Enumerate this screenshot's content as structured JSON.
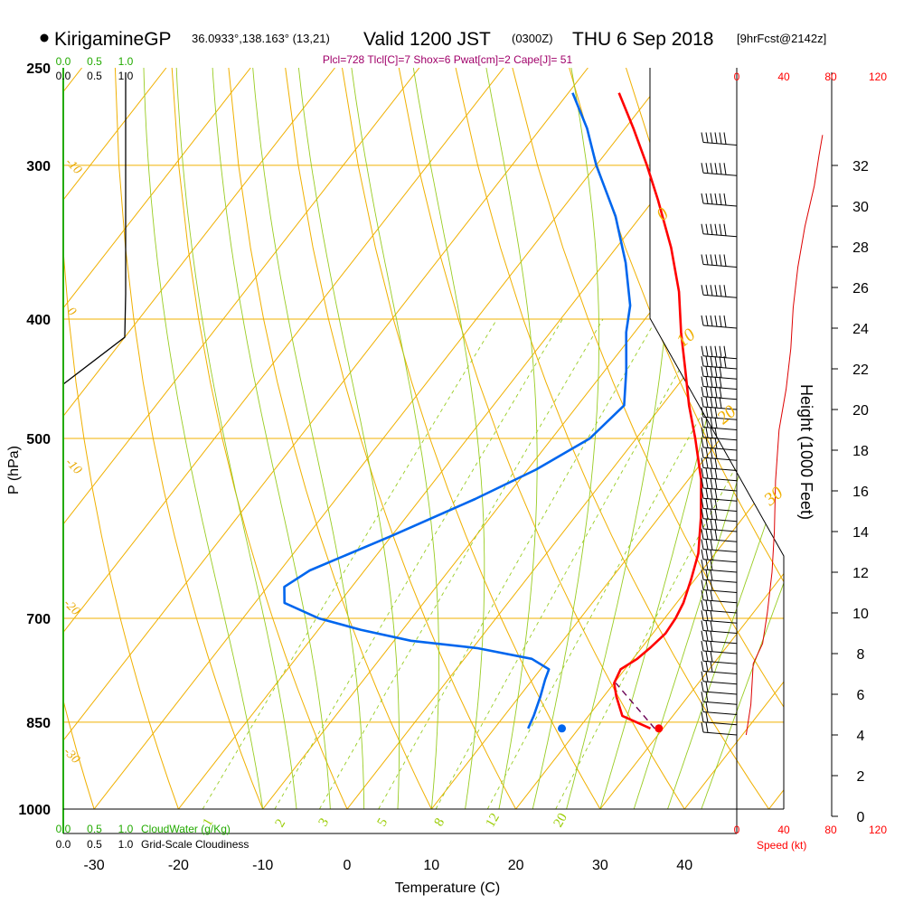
{
  "header": {
    "station": "KirigamineGP",
    "coords": "36.0933°,138.163° (13,21)",
    "valid": "Valid 1200 JST",
    "utc": "(0300Z)",
    "date": "THU 6 Sep 2018",
    "forecast": "[9hrFcst@2142z]",
    "indices": "Plcl=728 Tlcl[C]=7 Shox=6 Pwat[cm]=2 Cape[J]= 51"
  },
  "axes": {
    "x_title": "Temperature (C)",
    "y_title": "P (hPa)",
    "height_title": "Height (1000 Feet)",
    "speed_title": "Speed (kt)",
    "x_ticks": [
      "-30",
      "-20",
      "-10",
      "0",
      "10",
      "20",
      "30",
      "40"
    ],
    "p_ticks": [
      "250",
      "300",
      "400",
      "500",
      "700",
      "850",
      "1000"
    ],
    "height_ticks": [
      "0",
      "2",
      "4",
      "6",
      "8",
      "10",
      "12",
      "14",
      "16",
      "18",
      "20",
      "22",
      "24",
      "26",
      "28",
      "30",
      "32"
    ],
    "speed_ticks": [
      "0",
      "40",
      "80",
      "120"
    ],
    "cloud_ticks": [
      "0.0",
      "0.5",
      "1.0"
    ],
    "cloud_water_label": "CloudWater (g/Kg)",
    "cloudiness_label": "Grid-Scale Cloudiness"
  },
  "background_labels": {
    "dry_adiabat_labels": [
      "-10",
      "0",
      "10",
      "20",
      "30"
    ],
    "isotherm_left_labels": [
      "-10",
      "0",
      "-10",
      "-20",
      "-30"
    ],
    "mixing_ratio_labels": [
      "1",
      "2",
      "3",
      "5",
      "8",
      "12",
      "20"
    ]
  },
  "chart_data": {
    "type": "line",
    "title": "KirigamineGP 36.0933°,138.163° (13,21) Valid 1200 JST (0300Z) THU 6 Sep 2018 [9hrFcst@2142z]",
    "xlabel": "Temperature (C)",
    "ylabel": "P (hPa)",
    "xlim": [
      -35,
      45
    ],
    "ylim": [
      1000,
      250
    ],
    "y_scale": "log",
    "series": [
      {
        "name": "Temperature",
        "color": "#ff0000",
        "points": [
          {
            "p": 860,
            "t": 28.5
          },
          {
            "p": 840,
            "t": 24.0
          },
          {
            "p": 810,
            "t": 21.5
          },
          {
            "p": 790,
            "t": 20.0
          },
          {
            "p": 770,
            "t": 19.5
          },
          {
            "p": 755,
            "t": 20.5
          },
          {
            "p": 740,
            "t": 21.0
          },
          {
            "p": 720,
            "t": 21.5
          },
          {
            "p": 700,
            "t": 21.3
          },
          {
            "p": 680,
            "t": 20.8
          },
          {
            "p": 650,
            "t": 19.5
          },
          {
            "p": 620,
            "t": 18.0
          },
          {
            "p": 580,
            "t": 15.0
          },
          {
            "p": 540,
            "t": 11.5
          },
          {
            "p": 500,
            "t": 7.0
          },
          {
            "p": 470,
            "t": 3.2
          },
          {
            "p": 440,
            "t": -0.5
          },
          {
            "p": 410,
            "t": -4.5
          },
          {
            "p": 380,
            "t": -8.5
          },
          {
            "p": 350,
            "t": -13.5
          },
          {
            "p": 320,
            "t": -19.5
          },
          {
            "p": 300,
            "t": -24.0
          },
          {
            "p": 280,
            "t": -29.0
          },
          {
            "p": 262,
            "t": -34.0
          }
        ]
      },
      {
        "name": "Dewpoint",
        "color": "#0066ee",
        "points": [
          {
            "p": 860,
            "t": 14.0
          },
          {
            "p": 840,
            "t": 13.5
          },
          {
            "p": 810,
            "t": 12.5
          },
          {
            "p": 785,
            "t": 11.5
          },
          {
            "p": 770,
            "t": 11.0
          },
          {
            "p": 755,
            "t": 8.0
          },
          {
            "p": 740,
            "t": 0.5
          },
          {
            "p": 730,
            "t": -8.0
          },
          {
            "p": 715,
            "t": -15.0
          },
          {
            "p": 700,
            "t": -21.0
          },
          {
            "p": 680,
            "t": -26.5
          },
          {
            "p": 660,
            "t": -28.0
          },
          {
            "p": 640,
            "t": -26.5
          },
          {
            "p": 600,
            "t": -20.0
          },
          {
            "p": 560,
            "t": -13.5
          },
          {
            "p": 530,
            "t": -9.0
          },
          {
            "p": 500,
            "t": -5.5
          },
          {
            "p": 470,
            "t": -4.5
          },
          {
            "p": 440,
            "t": -7.5
          },
          {
            "p": 410,
            "t": -11.0
          },
          {
            "p": 390,
            "t": -13.0
          },
          {
            "p": 360,
            "t": -17.5
          },
          {
            "p": 330,
            "t": -23.0
          },
          {
            "p": 300,
            "t": -30.0
          },
          {
            "p": 280,
            "t": -34.5
          },
          {
            "p": 262,
            "t": -39.5
          }
        ]
      },
      {
        "name": "Parcel",
        "color": "#6a0055",
        "dashed": true,
        "points": [
          {
            "p": 860,
            "t": 29.0
          },
          {
            "p": 790,
            "t": 20.2
          }
        ]
      }
    ],
    "surface_markers": [
      {
        "name": "surface temperature",
        "p": 860,
        "t": 29.5,
        "color": "#ff0000"
      },
      {
        "name": "surface dewpoint",
        "p": 860,
        "t": 18.0,
        "color": "#0066ee"
      }
    ],
    "wind_speed_profile_kt": [
      {
        "h": 4.0,
        "s": 8
      },
      {
        "h": 5.5,
        "s": 12
      },
      {
        "h": 7.5,
        "s": 14
      },
      {
        "h": 8.5,
        "s": 22
      },
      {
        "h": 10.0,
        "s": 26
      },
      {
        "h": 12.0,
        "s": 30
      },
      {
        "h": 14.0,
        "s": 32
      },
      {
        "h": 16.5,
        "s": 33
      },
      {
        "h": 19.0,
        "s": 36
      },
      {
        "h": 21.0,
        "s": 42
      },
      {
        "h": 23.0,
        "s": 46
      },
      {
        "h": 25.0,
        "s": 48
      },
      {
        "h": 27.0,
        "s": 52
      },
      {
        "h": 29.0,
        "s": 58
      },
      {
        "h": 31.0,
        "s": 66
      },
      {
        "h": 32.5,
        "s": 70
      },
      {
        "h": 33.5,
        "s": 73
      }
    ]
  }
}
